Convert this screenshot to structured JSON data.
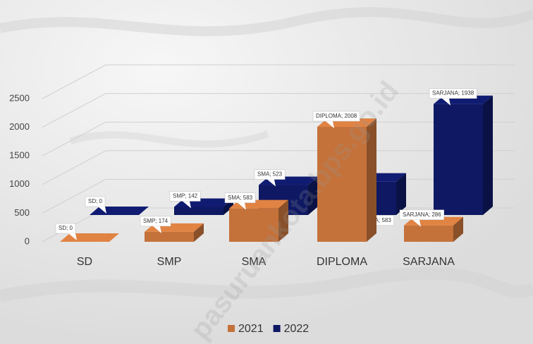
{
  "chart_data": {
    "type": "bar3d",
    "watermark": "pasuruankota.bps.go.id",
    "categories": [
      "SD",
      "SMP",
      "SMA",
      "DIPLOMA",
      "SARJANA"
    ],
    "series": [
      {
        "name": "2021",
        "color": "#c4723a",
        "values": [
          0,
          174,
          583,
          2008,
          286
        ],
        "value_labels": [
          "SD; 0",
          "SMP; 174",
          "SMA; 583",
          "DIPLOMA; 2008",
          "SARJANA; 286"
        ]
      },
      {
        "name": "2022",
        "color": "#0e1863",
        "values": [
          0,
          142,
          523,
          583,
          1938
        ],
        "value_labels": [
          "SD; 0",
          "SMP; 142",
          "SMA; 523",
          "DIPLOMA; 583",
          "SARJANA; 1938"
        ]
      }
    ],
    "ylim": [
      0,
      2500
    ],
    "yticks": [
      0,
      500,
      1000,
      1500,
      2000,
      2500
    ],
    "grid": true,
    "legend": "bottom"
  }
}
